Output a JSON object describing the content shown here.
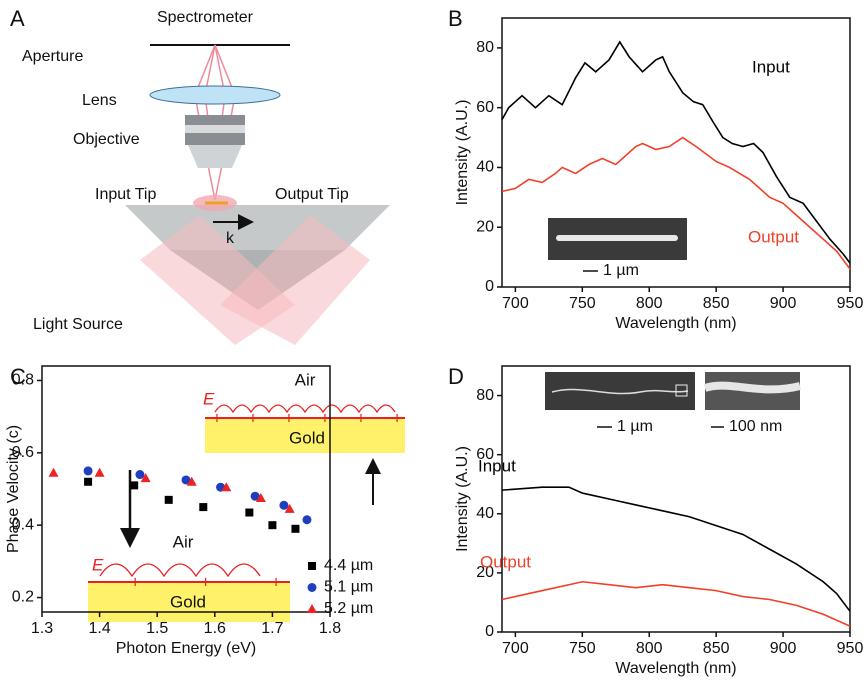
{
  "panel_labels": [
    "A",
    "B",
    "C",
    "D"
  ],
  "diagram": {
    "spectrometer": "Spectrometer",
    "aperture": "Aperture",
    "lens": "Lens",
    "objective": "Objective",
    "input_tip": "Input Tip",
    "output_tip": "Output Tip",
    "wavevector": "k",
    "light_source": "Light Source"
  },
  "chart_data": [
    {
      "type": "line",
      "x_label": "Wavelength (nm)",
      "y_label": "Intensity (A.U.)",
      "xlim": [
        690,
        950
      ],
      "xticks": [
        700,
        750,
        800,
        850,
        900,
        950
      ],
      "ylim": [
        0,
        90
      ],
      "yticks": [
        0,
        20,
        40,
        60,
        80
      ],
      "scale_bars": [
        "1 µm"
      ],
      "series": [
        {
          "name": "Input",
          "color": "#000000",
          "x": [
            690,
            695,
            705,
            715,
            725,
            735,
            745,
            752,
            760,
            770,
            778,
            785,
            795,
            805,
            810,
            815,
            825,
            833,
            840,
            848,
            855,
            862,
            870,
            878,
            885,
            895,
            905,
            915,
            925,
            935,
            945,
            950
          ],
          "values": [
            56,
            60,
            64,
            60,
            64,
            61,
            70,
            75,
            72,
            76,
            82,
            77,
            72,
            76,
            77,
            72,
            65,
            62,
            61,
            55,
            50,
            48,
            47,
            48,
            45,
            37,
            30,
            28,
            22,
            16,
            11,
            8
          ]
        },
        {
          "name": "Output",
          "color": "#f0402a",
          "x": [
            690,
            700,
            710,
            720,
            730,
            735,
            745,
            755,
            765,
            775,
            790,
            795,
            805,
            815,
            825,
            835,
            850,
            860,
            875,
            890,
            900,
            910,
            920,
            930,
            940,
            950
          ],
          "values": [
            32,
            33,
            36,
            35,
            38,
            40,
            38,
            41,
            43,
            41,
            47,
            48,
            46,
            47,
            50,
            47,
            42,
            40,
            36,
            30,
            28,
            24,
            20,
            16,
            12,
            6
          ]
        }
      ]
    },
    {
      "type": "scatter",
      "x_label": "Photon Energy (eV)",
      "y_label": "Phase Velocity (c)",
      "xlim": [
        1.3,
        1.8
      ],
      "xticks": [
        1.3,
        1.4,
        1.5,
        1.6,
        1.7,
        1.8
      ],
      "ylim": [
        0.16,
        0.84
      ],
      "yticks": [
        0.2,
        0.4,
        0.6,
        0.8
      ],
      "legend": "lower right",
      "insets": [
        {
          "medium": "Air",
          "metal": "Gold",
          "field": "E",
          "charges": "+ − + − + − + − + − +"
        },
        {
          "medium": "Air",
          "metal": "Gold",
          "field": "E",
          "charges": "− + − + − +"
        }
      ],
      "series": [
        {
          "name": "4.4 µm",
          "color": "#000000",
          "marker": "square",
          "x": [
            1.38,
            1.46,
            1.52,
            1.58,
            1.66,
            1.7,
            1.74
          ],
          "values": [
            0.52,
            0.51,
            0.47,
            0.45,
            0.435,
            0.4,
            0.39
          ]
        },
        {
          "name": "5.1 µm",
          "color": "#1f3fbf",
          "marker": "circle",
          "x": [
            1.38,
            1.47,
            1.55,
            1.61,
            1.67,
            1.72,
            1.76
          ],
          "values": [
            0.55,
            0.54,
            0.525,
            0.505,
            0.48,
            0.455,
            0.415
          ]
        },
        {
          "name": "5.2 µm",
          "color": "#ee2222",
          "marker": "triangle",
          "x": [
            1.32,
            1.4,
            1.48,
            1.56,
            1.62,
            1.68,
            1.73
          ],
          "values": [
            0.545,
            0.545,
            0.53,
            0.52,
            0.505,
            0.475,
            0.445
          ]
        }
      ]
    },
    {
      "type": "line",
      "x_label": "Wavelength (nm)",
      "y_label": "Intensity (A.U.)",
      "xlim": [
        690,
        950
      ],
      "xticks": [
        700,
        750,
        800,
        850,
        900,
        950
      ],
      "ylim": [
        0,
        90
      ],
      "yticks": [
        0,
        20,
        40,
        60,
        80
      ],
      "scale_bars": [
        "1 µm",
        "100 nm"
      ],
      "series": [
        {
          "name": "Input",
          "color": "#000000",
          "x": [
            690,
            720,
            740,
            750,
            770,
            790,
            810,
            830,
            850,
            870,
            890,
            910,
            930,
            940,
            950
          ],
          "values": [
            48,
            49,
            49,
            47,
            45,
            43,
            41,
            39,
            36,
            33,
            28,
            23,
            17,
            13,
            7
          ]
        },
        {
          "name": "Output",
          "color": "#f0402a",
          "x": [
            690,
            710,
            730,
            750,
            770,
            790,
            810,
            830,
            850,
            870,
            890,
            910,
            930,
            950
          ],
          "values": [
            11,
            13,
            15,
            17,
            16,
            15,
            16,
            15,
            14,
            12,
            11,
            9,
            6,
            2
          ]
        }
      ]
    }
  ]
}
